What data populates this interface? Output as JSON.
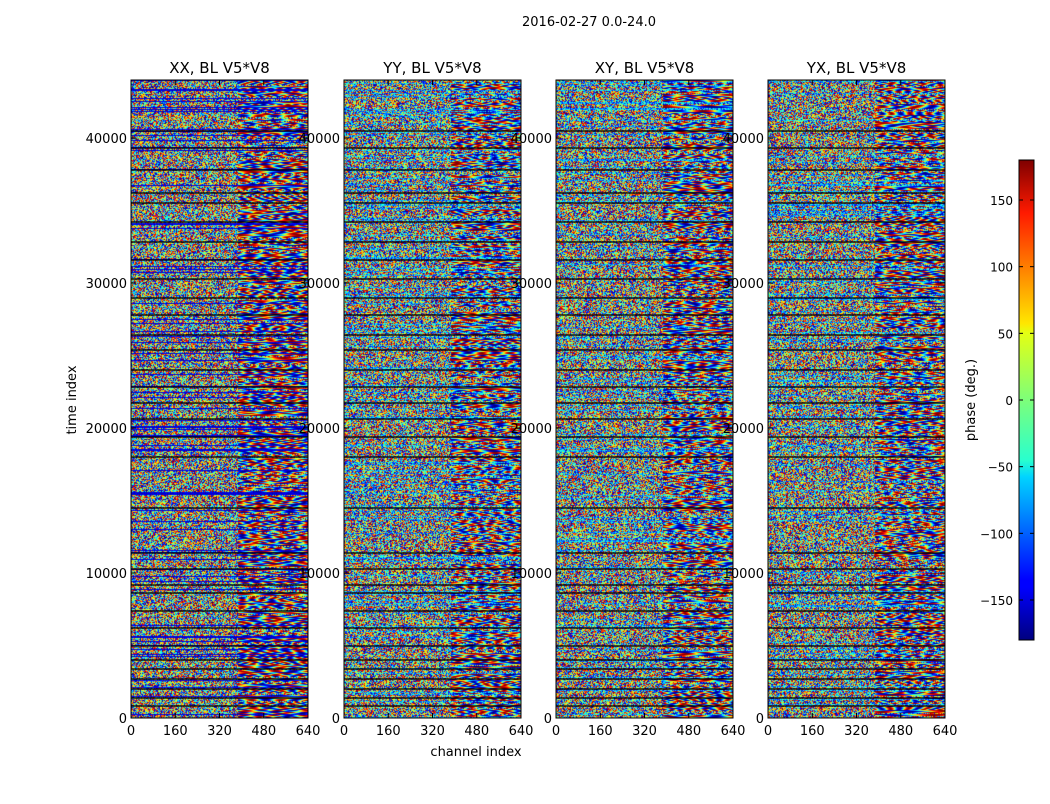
{
  "chart_data": {
    "type": "heatmap",
    "title": "2016-02-27 0.0-24.0",
    "xlabel": "channel index",
    "ylabel": "time index",
    "colorbar_label": "phase (deg.)",
    "xlim": [
      0,
      640
    ],
    "ylim": [
      0,
      44000
    ],
    "clim": [
      -180,
      180
    ],
    "colormap": "jet",
    "xticks": [
      0,
      160,
      320,
      480,
      640
    ],
    "yticks": [
      0,
      10000,
      20000,
      30000,
      40000
    ],
    "colorbar_ticks": [
      150,
      100,
      50,
      0,
      -50,
      -100,
      -150
    ],
    "colorbar_tick_labels": [
      "150",
      "100",
      "50",
      "0",
      "−50",
      "−100",
      "−150"
    ],
    "panels": [
      {
        "title": "XX, BL V5*V8"
      },
      {
        "title": "YY, BL V5*V8"
      },
      {
        "title": "XY, BL V5*V8"
      },
      {
        "title": "YX, BL V5*V8"
      }
    ],
    "scan_breaks": [
      800,
      1400,
      2000,
      2700,
      3400,
      4000,
      5000,
      6200,
      7400,
      8600,
      9200,
      10300,
      11400,
      14500,
      18000,
      19400,
      20600,
      21700,
      22800,
      24000,
      25400,
      26400,
      27800,
      29000,
      30300,
      31600,
      32800,
      34200,
      35500,
      36200,
      37800,
      39300,
      40500
    ]
  },
  "colors": {
    "background": "#ffffff",
    "axis": "#000000"
  }
}
